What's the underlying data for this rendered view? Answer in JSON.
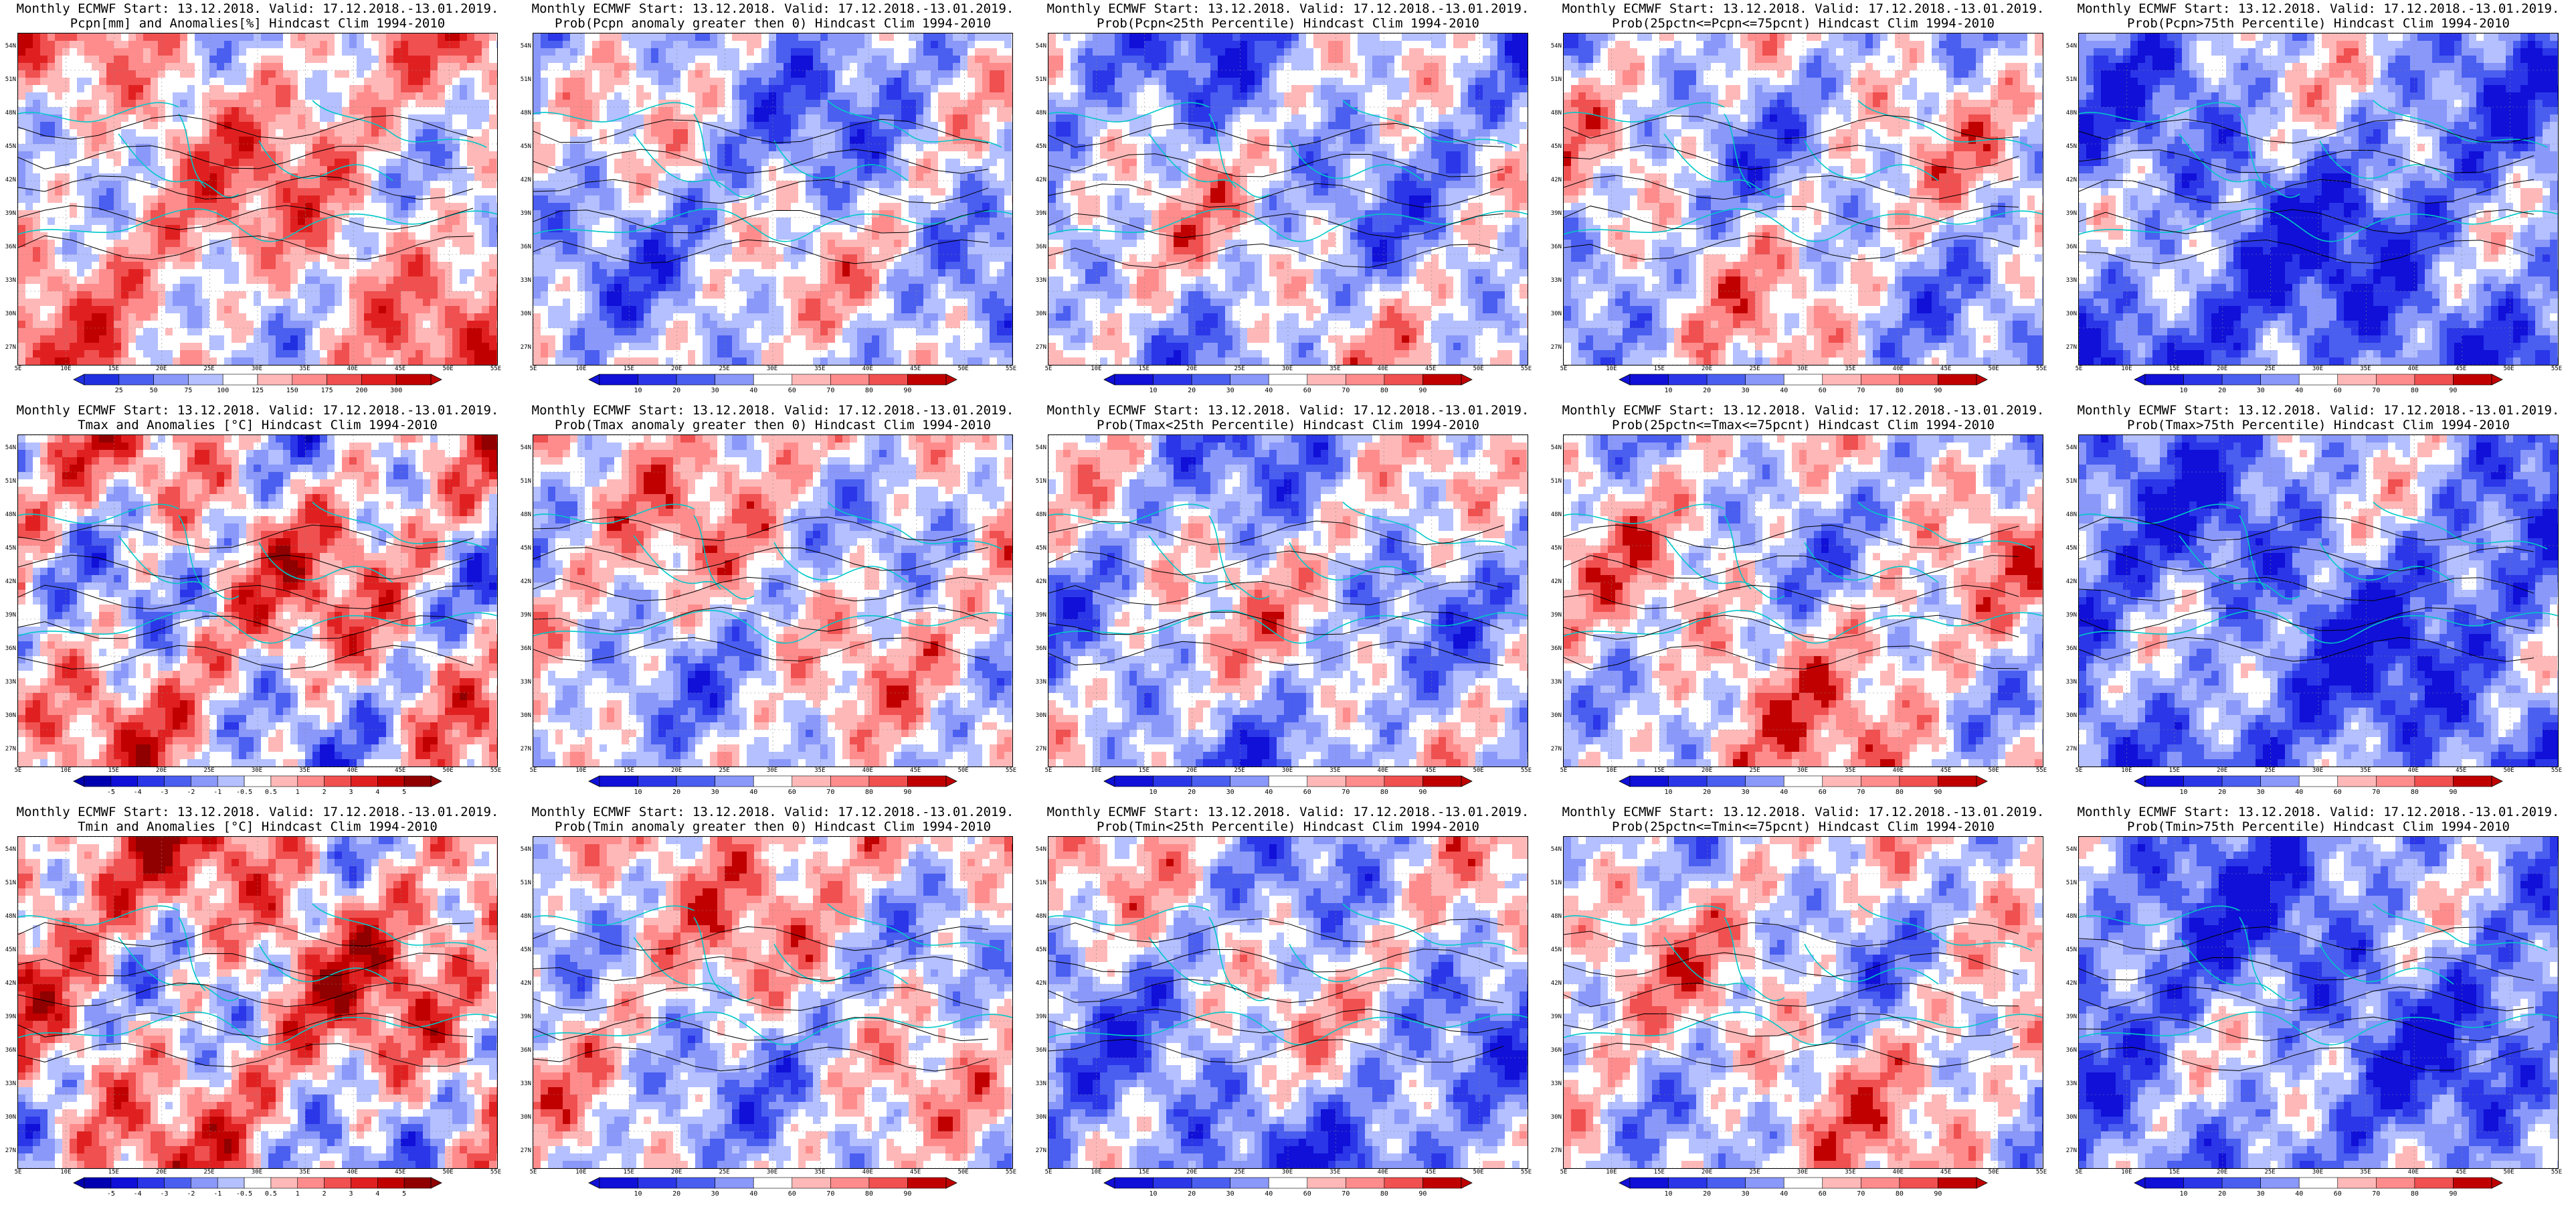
{
  "header_text": "Monthly ECMWF Start: 13.12.2018. Valid: 17.12.2018.-13.01.2019.",
  "y_ticks": [
    "54N",
    "51N",
    "48N",
    "45N",
    "42N",
    "39N",
    "36N",
    "33N",
    "30N",
    "27N"
  ],
  "x_ticks": [
    "5E",
    "10E",
    "15E",
    "20E",
    "25E",
    "30E",
    "35E",
    "40E",
    "45E",
    "50E",
    "55E"
  ],
  "colors": {
    "deep_blue": "#1010d8",
    "blue": "#4a5ef0",
    "light_blue": "#b4c0ff",
    "white": "#ffffff",
    "light_red": "#ffb8b8",
    "red": "#f05050",
    "deep_red": "#c00000",
    "coast": "#00c8c8",
    "contour": "#000000"
  },
  "panels": [
    {
      "subtitle": "Pcpn[mm] and Anomalies[%] Hindcast Clim 1994-2010",
      "legend": [
        "25",
        "50",
        "75",
        "100",
        "125",
        "150",
        "175",
        "200",
        "300"
      ],
      "scheme": "anom_pcp",
      "bias": 0.1
    },
    {
      "subtitle": "Prob(Pcpn anomaly greater then 0) Hindcast Clim 1994-2010",
      "legend": [
        "10",
        "20",
        "30",
        "40",
        "60",
        "70",
        "80",
        "90"
      ],
      "scheme": "prob",
      "bias": -0.15
    },
    {
      "subtitle": "Prob(Pcpn<25th Percentile) Hindcast Clim 1994-2010",
      "legend": [
        "10",
        "20",
        "30",
        "40",
        "60",
        "70",
        "80",
        "90"
      ],
      "scheme": "prob",
      "bias": -0.6
    },
    {
      "subtitle": "Prob(25pctn<=Pcpn<=75pcnt) Hindcast Clim 1994-2010",
      "legend": [
        "10",
        "20",
        "30",
        "40",
        "60",
        "70",
        "80",
        "90"
      ],
      "scheme": "prob",
      "bias": 0.05
    },
    {
      "subtitle": "Prob(Pcpn>75th Percentile) Hindcast Clim 1994-2010",
      "legend": [
        "10",
        "20",
        "30",
        "40",
        "60",
        "70",
        "80",
        "90"
      ],
      "scheme": "prob",
      "bias": -0.5
    },
    {
      "subtitle": "Tmax and Anomalies [°C] Hindcast Clim 1994-2010",
      "legend": [
        "-5",
        "-4",
        "-3",
        "-2",
        "-1",
        "-0.5",
        "0.5",
        "1",
        "2",
        "3",
        "4",
        "5"
      ],
      "scheme": "anom_t",
      "bias": 0.1
    },
    {
      "subtitle": "Prob(Tmax anomaly greater then 0) Hindcast Clim 1994-2010",
      "legend": [
        "10",
        "20",
        "30",
        "40",
        "60",
        "70",
        "80",
        "90"
      ],
      "scheme": "prob",
      "bias": 0.25
    },
    {
      "subtitle": "Prob(Tmax<25th Percentile) Hindcast Clim 1994-2010",
      "legend": [
        "10",
        "20",
        "30",
        "40",
        "60",
        "70",
        "80",
        "90"
      ],
      "scheme": "prob",
      "bias": -0.75
    },
    {
      "subtitle": "Prob(25pctn<=Tmax<=75pcnt) Hindcast Clim 1994-2010",
      "legend": [
        "10",
        "20",
        "30",
        "40",
        "60",
        "70",
        "80",
        "90"
      ],
      "scheme": "prob",
      "bias": 0.3
    },
    {
      "subtitle": "Prob(Tmax>75th Percentile) Hindcast Clim 1994-2010",
      "legend": [
        "10",
        "20",
        "30",
        "40",
        "60",
        "70",
        "80",
        "90"
      ],
      "scheme": "prob",
      "bias": -0.45
    },
    {
      "subtitle": "Tmin and Anomalies [°C] Hindcast Clim 1994-2010",
      "legend": [
        "-5",
        "-4",
        "-3",
        "-2",
        "-1",
        "-0.5",
        "0.5",
        "1",
        "2",
        "3",
        "4",
        "5"
      ],
      "scheme": "anom_t",
      "bias": 0.25
    },
    {
      "subtitle": "Prob(Tmin anomaly greater then 0) Hindcast Clim 1994-2010",
      "legend": [
        "10",
        "20",
        "30",
        "40",
        "60",
        "70",
        "80",
        "90"
      ],
      "scheme": "prob",
      "bias": 0.55
    },
    {
      "subtitle": "Prob(Tmin<25th Percentile) Hindcast Clim 1994-2010",
      "legend": [
        "10",
        "20",
        "30",
        "40",
        "60",
        "70",
        "80",
        "90"
      ],
      "scheme": "prob",
      "bias": -0.8
    },
    {
      "subtitle": "Prob(25pctn<=Tmin<=75pcnt) Hindcast Clim 1994-2010",
      "legend": [
        "10",
        "20",
        "30",
        "40",
        "60",
        "70",
        "80",
        "90"
      ],
      "scheme": "prob",
      "bias": 0.15
    },
    {
      "subtitle": "Prob(Tmin>75th Percentile) Hindcast Clim 1994-2010",
      "legend": [
        "10",
        "20",
        "30",
        "40",
        "60",
        "70",
        "80",
        "90"
      ],
      "scheme": "prob",
      "bias": -0.4
    }
  ]
}
